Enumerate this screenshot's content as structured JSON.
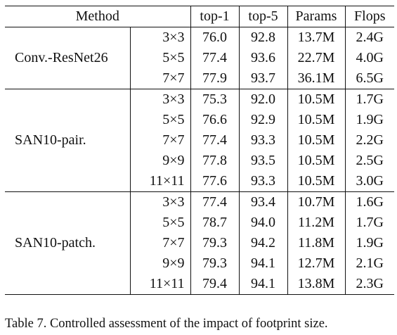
{
  "table": {
    "headers": {
      "method": "Method",
      "top1": "top-1",
      "top5": "top-5",
      "params": "Params",
      "flops": "Flops"
    },
    "groups": [
      {
        "method": "Conv.-ResNet26",
        "rows": [
          {
            "size": "3×3",
            "top1": "76.0",
            "top5": "92.8",
            "params": "13.7M",
            "flops": "2.4G"
          },
          {
            "size": "5×5",
            "top1": "77.4",
            "top5": "93.6",
            "params": "22.7M",
            "flops": "4.0G"
          },
          {
            "size": "7×7",
            "top1": "77.9",
            "top5": "93.7",
            "params": "36.1M",
            "flops": "6.5G"
          }
        ]
      },
      {
        "method": "SAN10-pair.",
        "rows": [
          {
            "size": "3×3",
            "top1": "75.3",
            "top5": "92.0",
            "params": "10.5M",
            "flops": "1.7G"
          },
          {
            "size": "5×5",
            "top1": "76.6",
            "top5": "92.9",
            "params": "10.5M",
            "flops": "1.9G"
          },
          {
            "size": "7×7",
            "top1": "77.4",
            "top5": "93.3",
            "params": "10.5M",
            "flops": "2.2G"
          },
          {
            "size": "9×9",
            "top1": "77.8",
            "top5": "93.5",
            "params": "10.5M",
            "flops": "2.5G"
          },
          {
            "size": "11×11",
            "top1": "77.6",
            "top5": "93.3",
            "params": "10.5M",
            "flops": "3.0G"
          }
        ]
      },
      {
        "method": "SAN10-patch.",
        "rows": [
          {
            "size": "3×3",
            "top1": "77.4",
            "top5": "93.4",
            "params": "10.7M",
            "flops": "1.6G"
          },
          {
            "size": "5×5",
            "top1": "78.7",
            "top5": "94.0",
            "params": "11.2M",
            "flops": "1.7G"
          },
          {
            "size": "7×7",
            "top1": "79.3",
            "top5": "94.2",
            "params": "11.8M",
            "flops": "1.9G"
          },
          {
            "size": "9×9",
            "top1": "79.3",
            "top5": "94.1",
            "params": "12.7M",
            "flops": "2.1G"
          },
          {
            "size": "11×11",
            "top1": "79.4",
            "top5": "94.1",
            "params": "13.8M",
            "flops": "2.3G"
          }
        ]
      }
    ]
  },
  "caption": "Table 7. Controlled assessment of the impact of footprint size."
}
